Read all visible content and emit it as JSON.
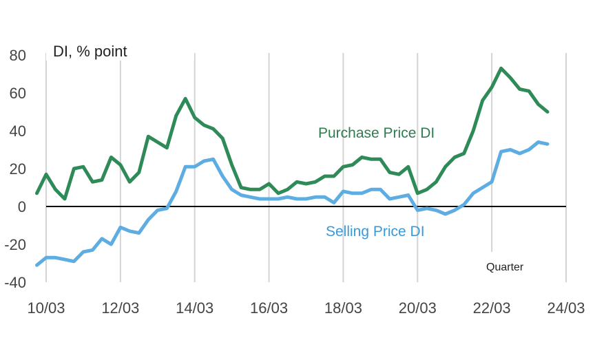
{
  "chart_data": {
    "type": "line",
    "title": "",
    "ylabel": "DI, % point",
    "xlabel": "Quarter",
    "ylim": [
      -40,
      80
    ],
    "yticks": [
      80,
      60,
      40,
      20,
      0,
      -20,
      -40
    ],
    "ytick_labels": [
      "80",
      "60",
      "40",
      "20",
      "0",
      "-20",
      "-40"
    ],
    "xlim": [
      2010.25,
      2024.25
    ],
    "xticks": [
      2010.25,
      2012.25,
      2014.25,
      2016.25,
      2018.25,
      2020.25,
      2022.25,
      2024.25
    ],
    "xtick_labels": [
      "10/03",
      "12/03",
      "14/03",
      "16/03",
      "18/03",
      "20/03",
      "22/03",
      "24/03"
    ],
    "grid": "vertical",
    "zero_line": true,
    "series": [
      {
        "name": "Purchase Price DI",
        "color": "#2e8b57",
        "x_start": 2010.0,
        "x_step": 0.25,
        "values": [
          7,
          17,
          9,
          4,
          20,
          21,
          13,
          14,
          26,
          22,
          13,
          18,
          37,
          34,
          31,
          48,
          57,
          47,
          43,
          41,
          36,
          22,
          10,
          9,
          9,
          12,
          7,
          9,
          13,
          12,
          13,
          16,
          16,
          21,
          22,
          26,
          25,
          25,
          18,
          17,
          21,
          7,
          9,
          13,
          21,
          26,
          28,
          40,
          56,
          63,
          73,
          68,
          62,
          61,
          54,
          50
        ]
      },
      {
        "name": "Selling Price DI",
        "color": "#5dade2",
        "x_start": 2010.0,
        "x_step": 0.25,
        "values": [
          -31,
          -27,
          -27,
          -28,
          -29,
          -24,
          -23,
          -17,
          -20,
          -11,
          -13,
          -14,
          -7,
          -2,
          -1,
          8,
          21,
          21,
          24,
          25,
          16,
          9,
          6,
          5,
          4,
          4,
          4,
          5,
          4,
          4,
          5,
          5,
          2,
          8,
          7,
          7,
          9,
          9,
          4,
          5,
          6,
          -2,
          -1,
          -2,
          -4,
          -2,
          1,
          7,
          10,
          13,
          29,
          30,
          28,
          30,
          34,
          33
        ]
      }
    ],
    "annotations": [
      "Purchase Price DI",
      "Selling Price DI",
      "Quarter"
    ]
  }
}
